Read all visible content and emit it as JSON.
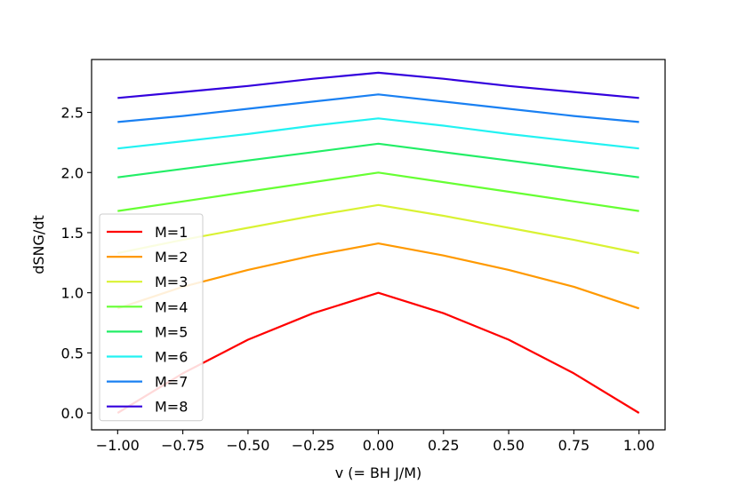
{
  "chart_data": {
    "type": "line",
    "title": "",
    "xlabel": "v (= BH J/M)",
    "ylabel": "dSNG/dt",
    "xlim": [
      -1.1,
      1.1
    ],
    "ylim": [
      -0.14,
      2.94
    ],
    "xticks": [
      "−1.00",
      "−0.75",
      "−0.50",
      "−0.25",
      "0.00",
      "0.25",
      "0.50",
      "0.75",
      "1.00"
    ],
    "xtick_values": [
      -1.0,
      -0.75,
      -0.5,
      -0.25,
      0.0,
      0.25,
      0.5,
      0.75,
      1.0
    ],
    "yticks": [
      "0.0",
      "0.5",
      "1.0",
      "1.5",
      "2.0",
      "2.5"
    ],
    "ytick_values": [
      0.0,
      0.5,
      1.0,
      1.5,
      2.0,
      2.5
    ],
    "grid": false,
    "legend_position": "lower-left",
    "x": [
      -1.0,
      -0.75,
      -0.5,
      -0.25,
      0.0,
      0.25,
      0.5,
      0.75,
      1.0
    ],
    "series": [
      {
        "name": "M=1",
        "color": "#ff0000",
        "values": [
          0.0,
          0.33,
          0.61,
          0.83,
          1.0,
          0.83,
          0.61,
          0.33,
          0.0
        ]
      },
      {
        "name": "M=2",
        "color": "#ff9900",
        "values": [
          0.87,
          1.05,
          1.19,
          1.31,
          1.41,
          1.31,
          1.19,
          1.05,
          0.87
        ]
      },
      {
        "name": "M=3",
        "color": "#d9f233",
        "values": [
          1.33,
          1.44,
          1.54,
          1.64,
          1.73,
          1.64,
          1.54,
          1.44,
          1.33
        ]
      },
      {
        "name": "M=4",
        "color": "#66ff33",
        "values": [
          1.68,
          1.76,
          1.84,
          1.92,
          2.0,
          1.92,
          1.84,
          1.76,
          1.68
        ]
      },
      {
        "name": "M=5",
        "color": "#22ee66",
        "values": [
          1.96,
          2.03,
          2.1,
          2.17,
          2.24,
          2.17,
          2.1,
          2.03,
          1.96
        ]
      },
      {
        "name": "M=6",
        "color": "#22f2f2",
        "values": [
          2.2,
          2.26,
          2.32,
          2.39,
          2.45,
          2.39,
          2.32,
          2.26,
          2.2
        ]
      },
      {
        "name": "M=7",
        "color": "#1a80f2",
        "values": [
          2.42,
          2.47,
          2.53,
          2.59,
          2.65,
          2.59,
          2.53,
          2.47,
          2.42
        ]
      },
      {
        "name": "M=8",
        "color": "#3300dd",
        "values": [
          2.62,
          2.67,
          2.72,
          2.78,
          2.83,
          2.78,
          2.72,
          2.67,
          2.62
        ]
      }
    ]
  }
}
